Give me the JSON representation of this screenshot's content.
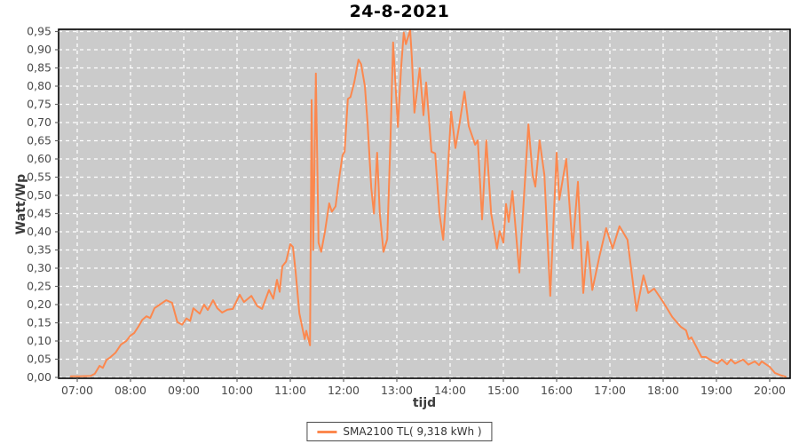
{
  "title": "24-8-2021",
  "legend": {
    "label": "SMA2100 TL( 9,318 kWh )"
  },
  "colors": {
    "line": "#fc884e",
    "plot_bg": "#cbcbcb",
    "grid": "#ffffff",
    "outer_bg": "#ffffff",
    "plot_border": "#000000",
    "tick": "#666666",
    "tick_label": "#4a4a4a",
    "title_color": "#000000",
    "axis_label": "#3d3d3d"
  },
  "chart_data": {
    "type": "line",
    "title": "24-8-2021",
    "xlabel": "tijd",
    "ylabel": "Watt/Wp",
    "legend_position": "bottom-center",
    "grid": "white dashed gridlines on gray plot background",
    "xlim_hours": [
      6.65,
      20.38
    ],
    "ylim": [
      0.0,
      0.956
    ],
    "y_tick_min": 0.0,
    "y_tick_max": 0.95,
    "y_tick_step": 0.05,
    "y_tick_format": "comma-decimal",
    "x_ticks": [
      {
        "hour": 7,
        "label": "07:00"
      },
      {
        "hour": 8,
        "label": "08:00"
      },
      {
        "hour": 9,
        "label": "09:00"
      },
      {
        "hour": 10,
        "label": "10:00"
      },
      {
        "hour": 11,
        "label": "11:00"
      },
      {
        "hour": 12,
        "label": "12:00"
      },
      {
        "hour": 13,
        "label": "13:00"
      },
      {
        "hour": 14,
        "label": "14:00"
      },
      {
        "hour": 15,
        "label": "15:00"
      },
      {
        "hour": 16,
        "label": "16:00"
      },
      {
        "hour": 17,
        "label": "17:00"
      },
      {
        "hour": 18,
        "label": "18:00"
      },
      {
        "hour": 19,
        "label": "19:00"
      },
      {
        "hour": 20,
        "label": "20:00"
      }
    ],
    "series": [
      {
        "name": "SMA2100 TL( 9,318 kWh )",
        "color": "#fc884e",
        "points": [
          [
            6.88,
            0.003
          ],
          [
            7.05,
            0.003
          ],
          [
            7.25,
            0.004
          ],
          [
            7.33,
            0.01
          ],
          [
            7.42,
            0.032
          ],
          [
            7.48,
            0.026
          ],
          [
            7.55,
            0.048
          ],
          [
            7.62,
            0.055
          ],
          [
            7.72,
            0.068
          ],
          [
            7.82,
            0.09
          ],
          [
            7.92,
            0.1
          ],
          [
            8.0,
            0.115
          ],
          [
            8.07,
            0.122
          ],
          [
            8.15,
            0.14
          ],
          [
            8.22,
            0.158
          ],
          [
            8.3,
            0.168
          ],
          [
            8.37,
            0.163
          ],
          [
            8.45,
            0.19
          ],
          [
            8.55,
            0.2
          ],
          [
            8.67,
            0.212
          ],
          [
            8.78,
            0.205
          ],
          [
            8.88,
            0.152
          ],
          [
            8.97,
            0.145
          ],
          [
            9.05,
            0.162
          ],
          [
            9.12,
            0.155
          ],
          [
            9.18,
            0.19
          ],
          [
            9.3,
            0.175
          ],
          [
            9.38,
            0.2
          ],
          [
            9.45,
            0.185
          ],
          [
            9.55,
            0.212
          ],
          [
            9.63,
            0.19
          ],
          [
            9.72,
            0.178
          ],
          [
            9.82,
            0.186
          ],
          [
            9.92,
            0.188
          ],
          [
            10.05,
            0.227
          ],
          [
            10.13,
            0.207
          ],
          [
            10.27,
            0.224
          ],
          [
            10.38,
            0.196
          ],
          [
            10.47,
            0.188
          ],
          [
            10.6,
            0.24
          ],
          [
            10.68,
            0.216
          ],
          [
            10.75,
            0.268
          ],
          [
            10.8,
            0.235
          ],
          [
            10.85,
            0.305
          ],
          [
            10.92,
            0.318
          ],
          [
            11.0,
            0.366
          ],
          [
            11.05,
            0.358
          ],
          [
            11.1,
            0.29
          ],
          [
            11.17,
            0.176
          ],
          [
            11.27,
            0.105
          ],
          [
            11.3,
            0.128
          ],
          [
            11.37,
            0.088
          ],
          [
            11.4,
            0.762
          ],
          [
            11.43,
            0.35
          ],
          [
            11.48,
            0.835
          ],
          [
            11.53,
            0.37
          ],
          [
            11.58,
            0.345
          ],
          [
            11.65,
            0.4
          ],
          [
            11.73,
            0.478
          ],
          [
            11.78,
            0.455
          ],
          [
            11.85,
            0.47
          ],
          [
            11.92,
            0.55
          ],
          [
            11.98,
            0.61
          ],
          [
            12.02,
            0.62
          ],
          [
            12.08,
            0.765
          ],
          [
            12.13,
            0.77
          ],
          [
            12.2,
            0.81
          ],
          [
            12.28,
            0.873
          ],
          [
            12.33,
            0.86
          ],
          [
            12.4,
            0.8
          ],
          [
            12.45,
            0.7
          ],
          [
            12.52,
            0.52
          ],
          [
            12.57,
            0.45
          ],
          [
            12.63,
            0.617
          ],
          [
            12.68,
            0.45
          ],
          [
            12.75,
            0.345
          ],
          [
            12.82,
            0.38
          ],
          [
            12.88,
            0.65
          ],
          [
            12.93,
            0.92
          ],
          [
            13.02,
            0.688
          ],
          [
            13.08,
            0.85
          ],
          [
            13.13,
            0.947
          ],
          [
            13.17,
            0.915
          ],
          [
            13.25,
            0.954
          ],
          [
            13.28,
            0.883
          ],
          [
            13.33,
            0.727
          ],
          [
            13.43,
            0.849
          ],
          [
            13.5,
            0.72
          ],
          [
            13.55,
            0.81
          ],
          [
            13.65,
            0.62
          ],
          [
            13.72,
            0.615
          ],
          [
            13.8,
            0.45
          ],
          [
            13.87,
            0.378
          ],
          [
            13.95,
            0.55
          ],
          [
            14.02,
            0.73
          ],
          [
            14.1,
            0.63
          ],
          [
            14.18,
            0.7
          ],
          [
            14.27,
            0.785
          ],
          [
            14.35,
            0.69
          ],
          [
            14.47,
            0.639
          ],
          [
            14.52,
            0.651
          ],
          [
            14.6,
            0.434
          ],
          [
            14.68,
            0.651
          ],
          [
            14.77,
            0.451
          ],
          [
            14.88,
            0.354
          ],
          [
            14.93,
            0.402
          ],
          [
            15.0,
            0.37
          ],
          [
            15.05,
            0.476
          ],
          [
            15.1,
            0.427
          ],
          [
            15.17,
            0.512
          ],
          [
            15.3,
            0.288
          ],
          [
            15.47,
            0.695
          ],
          [
            15.55,
            0.556
          ],
          [
            15.6,
            0.524
          ],
          [
            15.68,
            0.651
          ],
          [
            15.77,
            0.556
          ],
          [
            15.88,
            0.224
          ],
          [
            16.0,
            0.617
          ],
          [
            16.05,
            0.488
          ],
          [
            16.18,
            0.6
          ],
          [
            16.3,
            0.354
          ],
          [
            16.4,
            0.537
          ],
          [
            16.5,
            0.232
          ],
          [
            16.58,
            0.373
          ],
          [
            16.67,
            0.24
          ],
          [
            16.8,
            0.33
          ],
          [
            16.93,
            0.41
          ],
          [
            17.05,
            0.354
          ],
          [
            17.18,
            0.415
          ],
          [
            17.33,
            0.378
          ],
          [
            17.43,
            0.263
          ],
          [
            17.5,
            0.183
          ],
          [
            17.63,
            0.28
          ],
          [
            17.72,
            0.232
          ],
          [
            17.83,
            0.244
          ],
          [
            18.0,
            0.207
          ],
          [
            18.17,
            0.166
          ],
          [
            18.33,
            0.139
          ],
          [
            18.43,
            0.129
          ],
          [
            18.48,
            0.105
          ],
          [
            18.53,
            0.11
          ],
          [
            18.72,
            0.056
          ],
          [
            18.8,
            0.056
          ],
          [
            18.93,
            0.044
          ],
          [
            19.02,
            0.038
          ],
          [
            19.1,
            0.049
          ],
          [
            19.2,
            0.036
          ],
          [
            19.27,
            0.049
          ],
          [
            19.35,
            0.038
          ],
          [
            19.5,
            0.049
          ],
          [
            19.6,
            0.035
          ],
          [
            19.72,
            0.044
          ],
          [
            19.8,
            0.034
          ],
          [
            19.85,
            0.044
          ],
          [
            20.0,
            0.029
          ],
          [
            20.1,
            0.012
          ],
          [
            20.22,
            0.005
          ],
          [
            20.3,
            0.002
          ]
        ]
      }
    ]
  }
}
